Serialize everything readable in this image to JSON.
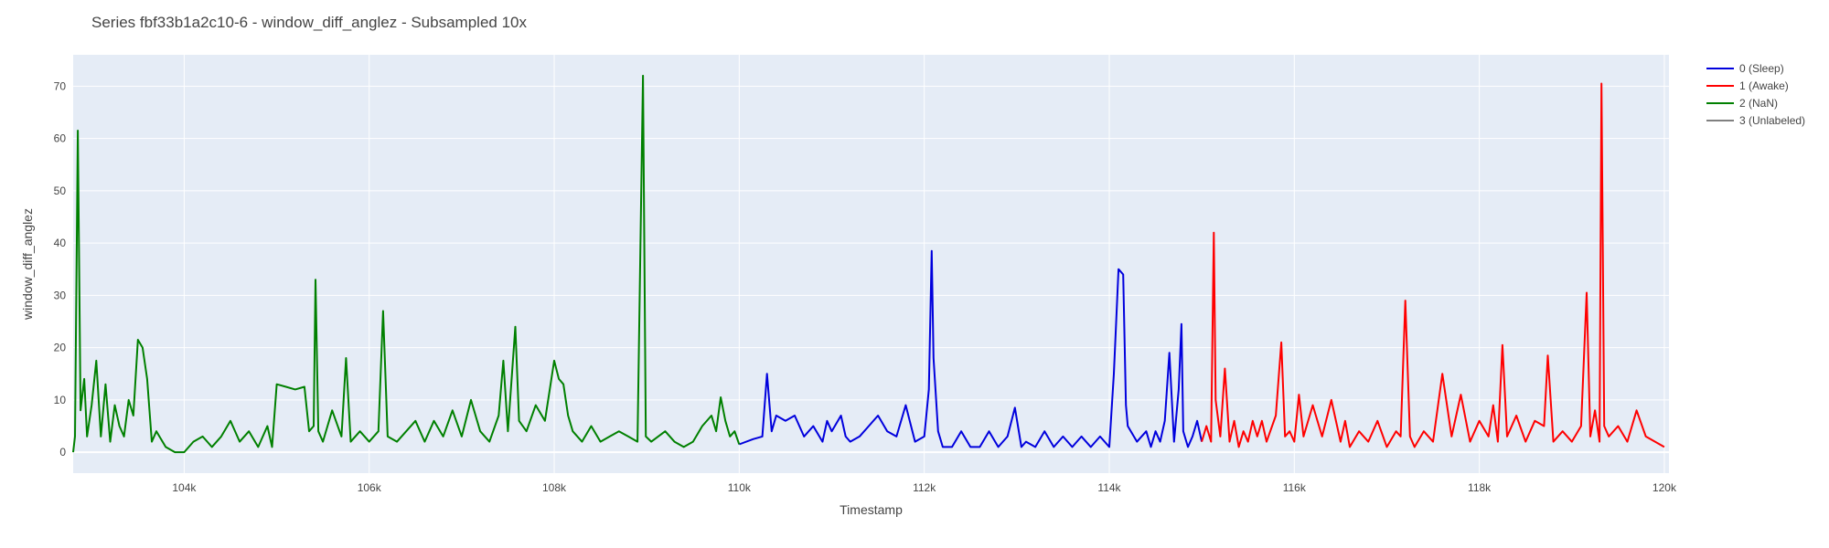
{
  "chart_data": {
    "type": "line",
    "title": "Series fbf33b1a2c10-6 - window_diff_anglez - Subsampled 10x",
    "xlabel": "Timestamp",
    "ylabel": "window_diff_anglez",
    "xlim": [
      102800,
      120050
    ],
    "ylim": [
      -4,
      76
    ],
    "x_ticks": [
      {
        "value": 104000,
        "label": "104k"
      },
      {
        "value": 106000,
        "label": "106k"
      },
      {
        "value": 108000,
        "label": "108k"
      },
      {
        "value": 110000,
        "label": "110k"
      },
      {
        "value": 112000,
        "label": "112k"
      },
      {
        "value": 114000,
        "label": "114k"
      },
      {
        "value": 116000,
        "label": "116k"
      },
      {
        "value": 118000,
        "label": "118k"
      },
      {
        "value": 120000,
        "label": "120k"
      }
    ],
    "y_ticks": [
      {
        "value": 0,
        "label": "0"
      },
      {
        "value": 10,
        "label": "10"
      },
      {
        "value": 20,
        "label": "20"
      },
      {
        "value": 30,
        "label": "30"
      },
      {
        "value": 40,
        "label": "40"
      },
      {
        "value": 50,
        "label": "50"
      },
      {
        "value": 60,
        "label": "60"
      },
      {
        "value": 70,
        "label": "70"
      }
    ],
    "grid": true,
    "legend_position": "top-right",
    "plot_background": "#e5ecf6",
    "series": [
      {
        "name": "0 (Sleep)",
        "color": "#0000dd",
        "points": [
          [
            110000,
            1.5
          ],
          [
            110150,
            2.5
          ],
          [
            110250,
            3
          ],
          [
            110300,
            15
          ],
          [
            110350,
            4
          ],
          [
            110400,
            7
          ],
          [
            110500,
            6
          ],
          [
            110600,
            7
          ],
          [
            110700,
            3
          ],
          [
            110800,
            5
          ],
          [
            110900,
            2
          ],
          [
            110950,
            6
          ],
          [
            111000,
            4
          ],
          [
            111100,
            7
          ],
          [
            111150,
            3
          ],
          [
            111200,
            2
          ],
          [
            111300,
            3
          ],
          [
            111400,
            5
          ],
          [
            111500,
            7
          ],
          [
            111600,
            4
          ],
          [
            111700,
            3
          ],
          [
            111800,
            9
          ],
          [
            111900,
            2
          ],
          [
            112000,
            3
          ],
          [
            112050,
            12
          ],
          [
            112080,
            38.5
          ],
          [
            112100,
            18
          ],
          [
            112150,
            4
          ],
          [
            112200,
            1
          ],
          [
            112300,
            1
          ],
          [
            112400,
            4
          ],
          [
            112500,
            1
          ],
          [
            112600,
            1
          ],
          [
            112700,
            4
          ],
          [
            112800,
            1
          ],
          [
            112900,
            3
          ],
          [
            112980,
            8.5
          ],
          [
            113050,
            1
          ],
          [
            113100,
            2
          ],
          [
            113200,
            1
          ],
          [
            113300,
            4
          ],
          [
            113400,
            1
          ],
          [
            113500,
            3
          ],
          [
            113600,
            1
          ],
          [
            113700,
            3
          ],
          [
            113800,
            1
          ],
          [
            113900,
            3
          ],
          [
            114000,
            1
          ],
          [
            114050,
            15
          ],
          [
            114100,
            35
          ],
          [
            114150,
            34
          ],
          [
            114180,
            9
          ],
          [
            114200,
            5
          ],
          [
            114300,
            2
          ],
          [
            114400,
            4
          ],
          [
            114450,
            1
          ],
          [
            114500,
            4
          ],
          [
            114550,
            2
          ],
          [
            114600,
            6
          ],
          [
            114650,
            19
          ],
          [
            114700,
            2
          ],
          [
            114750,
            12
          ],
          [
            114780,
            24.5
          ],
          [
            114800,
            4
          ],
          [
            114850,
            1
          ],
          [
            114900,
            3
          ],
          [
            114950,
            6
          ],
          [
            115000,
            2
          ]
        ]
      },
      {
        "name": "1 (Awake)",
        "color": "#ff0000",
        "points": [
          [
            115000,
            2
          ],
          [
            115050,
            5
          ],
          [
            115100,
            2
          ],
          [
            115130,
            42
          ],
          [
            115150,
            10
          ],
          [
            115200,
            3
          ],
          [
            115250,
            16
          ],
          [
            115300,
            2
          ],
          [
            115350,
            6
          ],
          [
            115400,
            1
          ],
          [
            115450,
            4
          ],
          [
            115500,
            2
          ],
          [
            115550,
            6
          ],
          [
            115600,
            3
          ],
          [
            115650,
            6
          ],
          [
            115700,
            2
          ],
          [
            115800,
            7
          ],
          [
            115860,
            21
          ],
          [
            115900,
            3
          ],
          [
            115950,
            4
          ],
          [
            116000,
            2
          ],
          [
            116050,
            11
          ],
          [
            116100,
            3
          ],
          [
            116200,
            9
          ],
          [
            116300,
            3
          ],
          [
            116400,
            10
          ],
          [
            116500,
            2
          ],
          [
            116550,
            6
          ],
          [
            116600,
            1
          ],
          [
            116700,
            4
          ],
          [
            116800,
            2
          ],
          [
            116900,
            6
          ],
          [
            117000,
            1
          ],
          [
            117100,
            4
          ],
          [
            117150,
            3
          ],
          [
            117200,
            29
          ],
          [
            117250,
            3
          ],
          [
            117300,
            1
          ],
          [
            117400,
            4
          ],
          [
            117500,
            2
          ],
          [
            117600,
            15
          ],
          [
            117700,
            3
          ],
          [
            117800,
            11
          ],
          [
            117900,
            2
          ],
          [
            118000,
            6
          ],
          [
            118100,
            3
          ],
          [
            118150,
            9
          ],
          [
            118200,
            2
          ],
          [
            118250,
            20.5
          ],
          [
            118300,
            3
          ],
          [
            118400,
            7
          ],
          [
            118500,
            2
          ],
          [
            118600,
            6
          ],
          [
            118700,
            5
          ],
          [
            118740,
            18.5
          ],
          [
            118800,
            2
          ],
          [
            118900,
            4
          ],
          [
            119000,
            2
          ],
          [
            119100,
            5
          ],
          [
            119160,
            30.5
          ],
          [
            119200,
            3
          ],
          [
            119250,
            8
          ],
          [
            119300,
            2
          ],
          [
            119320,
            70.5
          ],
          [
            119350,
            5
          ],
          [
            119400,
            3
          ],
          [
            119500,
            5
          ],
          [
            119600,
            2
          ],
          [
            119700,
            8
          ],
          [
            119800,
            3
          ],
          [
            119900,
            2
          ],
          [
            120000,
            1
          ]
        ]
      },
      {
        "name": "2 (NaN)",
        "color": "#008000",
        "points": [
          [
            102800,
            0
          ],
          [
            102820,
            3
          ],
          [
            102850,
            61.5
          ],
          [
            102880,
            8
          ],
          [
            102920,
            14
          ],
          [
            102950,
            3
          ],
          [
            103000,
            9
          ],
          [
            103050,
            17.5
          ],
          [
            103100,
            3
          ],
          [
            103150,
            13
          ],
          [
            103200,
            2
          ],
          [
            103250,
            9
          ],
          [
            103300,
            5
          ],
          [
            103350,
            3
          ],
          [
            103400,
            10
          ],
          [
            103450,
            7
          ],
          [
            103500,
            21.5
          ],
          [
            103550,
            20
          ],
          [
            103600,
            14
          ],
          [
            103650,
            2
          ],
          [
            103700,
            4
          ],
          [
            103800,
            1
          ],
          [
            103900,
            0
          ],
          [
            104000,
            0
          ],
          [
            104100,
            2
          ],
          [
            104200,
            3
          ],
          [
            104300,
            1
          ],
          [
            104400,
            3
          ],
          [
            104500,
            6
          ],
          [
            104600,
            2
          ],
          [
            104700,
            4
          ],
          [
            104800,
            1
          ],
          [
            104900,
            5
          ],
          [
            104950,
            1
          ],
          [
            105000,
            13
          ],
          [
            105100,
            12.5
          ],
          [
            105200,
            12
          ],
          [
            105300,
            12.5
          ],
          [
            105350,
            4
          ],
          [
            105400,
            5
          ],
          [
            105420,
            33
          ],
          [
            105450,
            4
          ],
          [
            105500,
            2
          ],
          [
            105600,
            8
          ],
          [
            105700,
            3
          ],
          [
            105750,
            18
          ],
          [
            105800,
            2
          ],
          [
            105900,
            4
          ],
          [
            106000,
            2
          ],
          [
            106100,
            4
          ],
          [
            106150,
            27
          ],
          [
            106200,
            3
          ],
          [
            106300,
            2
          ],
          [
            106400,
            4
          ],
          [
            106500,
            6
          ],
          [
            106600,
            2
          ],
          [
            106700,
            6
          ],
          [
            106800,
            3
          ],
          [
            106900,
            8
          ],
          [
            107000,
            3
          ],
          [
            107100,
            10
          ],
          [
            107200,
            4
          ],
          [
            107300,
            2
          ],
          [
            107400,
            7
          ],
          [
            107450,
            17.5
          ],
          [
            107500,
            4
          ],
          [
            107580,
            24
          ],
          [
            107620,
            6
          ],
          [
            107700,
            4
          ],
          [
            107800,
            9
          ],
          [
            107900,
            6
          ],
          [
            108000,
            17.5
          ],
          [
            108050,
            14
          ],
          [
            108100,
            13
          ],
          [
            108150,
            7
          ],
          [
            108200,
            4
          ],
          [
            108300,
            2
          ],
          [
            108400,
            5
          ],
          [
            108500,
            2
          ],
          [
            108600,
            3
          ],
          [
            108700,
            4
          ],
          [
            108800,
            3
          ],
          [
            108900,
            2
          ],
          [
            108960,
            72
          ],
          [
            108990,
            3
          ],
          [
            109050,
            2
          ],
          [
            109200,
            4
          ],
          [
            109300,
            2
          ],
          [
            109400,
            1
          ],
          [
            109500,
            2
          ],
          [
            109600,
            5
          ],
          [
            109700,
            7
          ],
          [
            109750,
            4
          ],
          [
            109800,
            10.5
          ],
          [
            109850,
            6
          ],
          [
            109900,
            3
          ],
          [
            109950,
            4
          ],
          [
            110000,
            1.5
          ]
        ]
      },
      {
        "name": "3 (Unlabeled)",
        "color": "#808080",
        "points": []
      }
    ]
  }
}
